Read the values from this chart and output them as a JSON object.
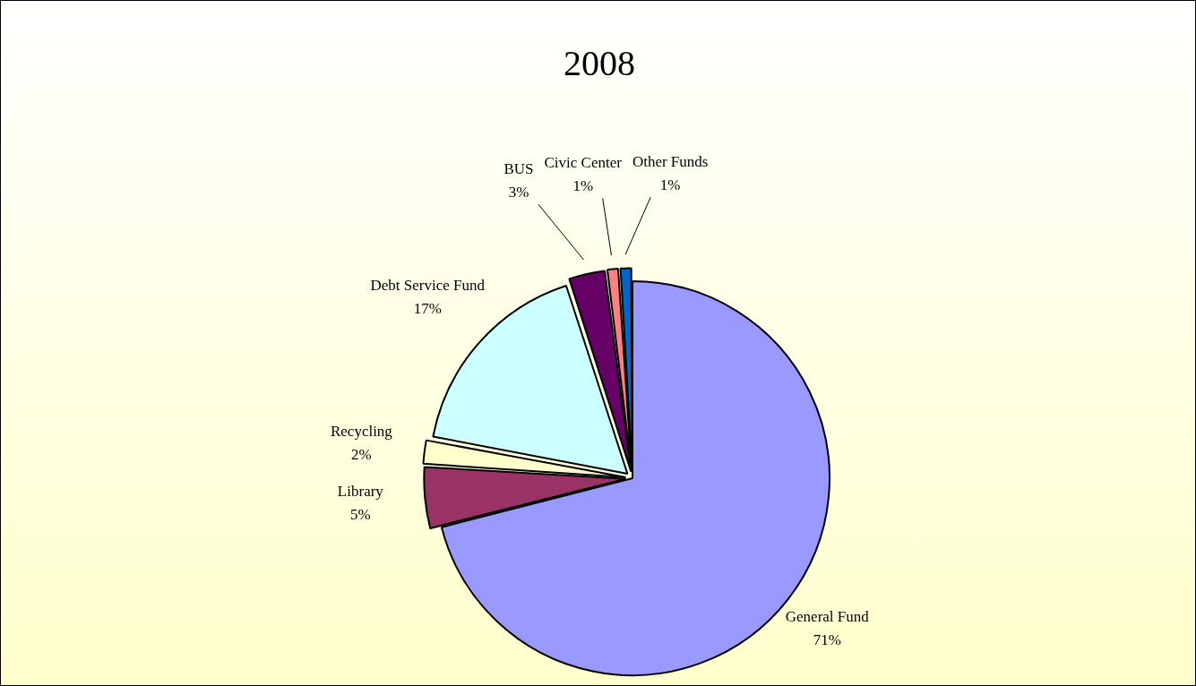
{
  "chart_data": {
    "type": "pie",
    "title": "2008",
    "categories": [
      "General Fund",
      "Library",
      "Recycling",
      "Debt Service Fund",
      "BUS",
      "Civic Center",
      "Other Funds"
    ],
    "values": [
      71,
      5,
      2,
      17,
      3,
      1,
      1
    ],
    "value_labels": [
      "71%",
      "5%",
      "2%",
      "17%",
      "3%",
      "1%",
      "1%"
    ],
    "colors": [
      "#9999ff",
      "#993366",
      "#ffffcc",
      "#ccffff",
      "#660066",
      "#ff8080",
      "#0066cc"
    ],
    "legend": false
  }
}
